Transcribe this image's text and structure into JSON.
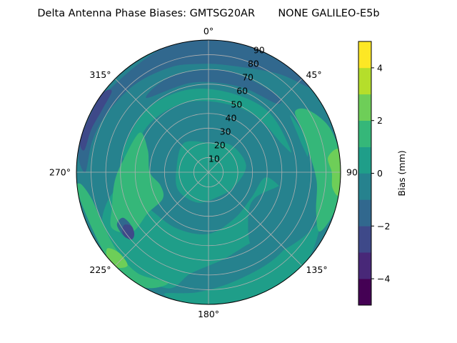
{
  "chart_data": {
    "type": "heatmap",
    "projection": "polar",
    "title": "Delta Antenna Phase Biases: GMTSG20AR       NONE GALILEO-E5b",
    "theta_zero_location": "N",
    "theta_direction": "clockwise",
    "angle_ticks": [
      {
        "deg": 0,
        "label": "0°"
      },
      {
        "deg": 45,
        "label": "45°"
      },
      {
        "deg": 90,
        "label": "90°"
      },
      {
        "deg": 135,
        "label": "135°"
      },
      {
        "deg": 180,
        "label": "180°"
      },
      {
        "deg": 225,
        "label": "225°"
      },
      {
        "deg": 270,
        "label": "270°"
      },
      {
        "deg": 315,
        "label": "315°"
      }
    ],
    "radial_ticks": [
      {
        "value": 10,
        "label": "10"
      },
      {
        "value": 20,
        "label": "20"
      },
      {
        "value": 30,
        "label": "30"
      },
      {
        "value": 40,
        "label": "40"
      },
      {
        "value": 50,
        "label": "50"
      },
      {
        "value": 60,
        "label": "60"
      },
      {
        "value": 70,
        "label": "70"
      },
      {
        "value": 80,
        "label": "80"
      },
      {
        "value": 90,
        "label": "90"
      }
    ],
    "rlim": [
      0,
      90
    ],
    "grid": true,
    "colorbar": {
      "label": "Bias (mm)",
      "range": [
        -5,
        5
      ],
      "levels": [
        -5,
        -4,
        -3,
        -2,
        -1,
        0,
        1,
        2,
        3,
        4,
        5
      ],
      "ticks": [
        {
          "value": -4,
          "label": "−4"
        },
        {
          "value": -2,
          "label": "−2"
        },
        {
          "value": 0,
          "label": "0"
        },
        {
          "value": 2,
          "label": "2"
        },
        {
          "value": 4,
          "label": "4"
        }
      ],
      "colors": [
        "#440154",
        "#482878",
        "#3e4989",
        "#31688e",
        "#26828e",
        "#1f9e89",
        "#35b779",
        "#6ece58",
        "#b5de2b",
        "#fde725"
      ]
    },
    "background_color": "#26828e",
    "regions": [
      {
        "level": "0 to 1",
        "color": "#1f9e89",
        "points": [
          [
            0,
            20
          ],
          [
            40,
            24
          ],
          [
            80,
            26
          ],
          [
            120,
            20
          ],
          [
            160,
            18
          ],
          [
            200,
            22
          ],
          [
            240,
            24
          ],
          [
            280,
            22
          ],
          [
            320,
            26
          ],
          [
            360,
            20
          ]
        ]
      },
      {
        "level": "0 to 1",
        "color": "#1f9e89",
        "points": [
          [
            280,
            55
          ],
          [
            310,
            52
          ],
          [
            340,
            50
          ],
          [
            10,
            48
          ],
          [
            40,
            50
          ],
          [
            70,
            54
          ],
          [
            75,
            58
          ],
          [
            45,
            58
          ],
          [
            15,
            56
          ],
          [
            345,
            58
          ],
          [
            315,
            60
          ],
          [
            285,
            60
          ]
        ]
      },
      {
        "level": "0 to 1",
        "color": "#1f9e89",
        "points": [
          [
            95,
            40
          ],
          [
            120,
            34
          ],
          [
            150,
            36
          ],
          [
            180,
            42
          ],
          [
            210,
            44
          ],
          [
            240,
            48
          ],
          [
            260,
            62
          ],
          [
            245,
            80
          ],
          [
            225,
            86
          ],
          [
            200,
            84
          ],
          [
            190,
            70
          ],
          [
            170,
            60
          ],
          [
            150,
            56
          ],
          [
            130,
            62
          ],
          [
            110,
            58
          ]
        ]
      },
      {
        "level": "0 to 1",
        "color": "#1f9e89",
        "points": [
          [
            55,
            68
          ],
          [
            75,
            72
          ],
          [
            95,
            80
          ],
          [
            120,
            86
          ],
          [
            135,
            90
          ],
          [
            155,
            90
          ],
          [
            175,
            90
          ],
          [
            190,
            90
          ],
          [
            200,
            88
          ],
          [
            185,
            82
          ],
          [
            165,
            76
          ],
          [
            140,
            74
          ],
          [
            115,
            72
          ],
          [
            90,
            70
          ],
          [
            70,
            66
          ]
        ]
      },
      {
        "level": "-1 to 0",
        "color": "#26828e",
        "points": [
          [
            60,
            78
          ],
          [
            75,
            72
          ],
          [
            90,
            62
          ],
          [
            100,
            50
          ],
          [
            120,
            36
          ],
          [
            140,
            42
          ],
          [
            150,
            60
          ],
          [
            140,
            72
          ],
          [
            115,
            82
          ],
          [
            90,
            90
          ],
          [
            70,
            90
          ]
        ]
      },
      {
        "level": "1 to 2",
        "color": "#35b779",
        "points": [
          [
            240,
            36
          ],
          [
            255,
            34
          ],
          [
            270,
            40
          ],
          [
            290,
            44
          ],
          [
            300,
            54
          ],
          [
            280,
            58
          ],
          [
            265,
            64
          ],
          [
            250,
            70
          ],
          [
            240,
            76
          ],
          [
            232,
            66
          ],
          [
            236,
            50
          ]
        ]
      },
      {
        "level": "1 to 2",
        "color": "#35b779",
        "points": [
          [
            55,
            72
          ],
          [
            65,
            70
          ],
          [
            80,
            70
          ],
          [
            95,
            74
          ],
          [
            110,
            78
          ],
          [
            118,
            86
          ],
          [
            105,
            90
          ],
          [
            85,
            90
          ],
          [
            70,
            88
          ],
          [
            58,
            80
          ]
        ]
      },
      {
        "level": "1 to 2",
        "color": "#35b779",
        "points": [
          [
            200,
            80
          ],
          [
            215,
            84
          ],
          [
            230,
            82
          ],
          [
            245,
            80
          ],
          [
            258,
            82
          ],
          [
            265,
            88
          ],
          [
            260,
            90
          ],
          [
            230,
            90
          ],
          [
            210,
            90
          ]
        ]
      },
      {
        "level": "2 to 3",
        "color": "#6ece58",
        "points": [
          [
            83,
            82
          ],
          [
            90,
            84
          ],
          [
            97,
            85
          ],
          [
            100,
            90
          ],
          [
            90,
            90
          ],
          [
            80,
            90
          ]
        ]
      },
      {
        "level": "2 to 3",
        "color": "#6ece58",
        "points": [
          [
            221,
            84
          ],
          [
            228,
            82
          ],
          [
            233,
            86
          ],
          [
            230,
            90
          ],
          [
            224,
            90
          ]
        ]
      },
      {
        "level": "-2 to -1",
        "color": "#31688e",
        "points": [
          [
            270,
            84
          ],
          [
            285,
            82
          ],
          [
            300,
            80
          ],
          [
            320,
            78
          ],
          [
            340,
            76
          ],
          [
            355,
            74
          ],
          [
            10,
            74
          ],
          [
            35,
            82
          ],
          [
            50,
            90
          ],
          [
            35,
            90
          ],
          [
            10,
            90
          ],
          [
            340,
            90
          ],
          [
            300,
            90
          ],
          [
            280,
            90
          ]
        ]
      },
      {
        "level": "-2 to -1",
        "color": "#31688e",
        "points": [
          [
            320,
            66
          ],
          [
            350,
            62
          ],
          [
            20,
            62
          ],
          [
            45,
            66
          ],
          [
            40,
            70
          ],
          [
            10,
            70
          ],
          [
            340,
            70
          ]
        ]
      },
      {
        "level": "-2 to -1",
        "color": "#31688e",
        "points": [
          [
            235,
            64
          ],
          [
            242,
            66
          ],
          [
            240,
            72
          ],
          [
            232,
            72
          ],
          [
            230,
            68
          ]
        ]
      },
      {
        "level": "-3 to -2",
        "color": "#3e4989",
        "points": [
          [
            280,
            86
          ],
          [
            290,
            85
          ],
          [
            300,
            84
          ],
          [
            310,
            86
          ],
          [
            305,
            90
          ],
          [
            285,
            90
          ]
        ]
      },
      {
        "level": "-3 to -2",
        "color": "#3e4989",
        "points": [
          [
            230,
            66
          ],
          [
            235,
            64
          ],
          [
            238,
            68
          ],
          [
            234,
            72
          ],
          [
            229,
            70
          ]
        ]
      }
    ]
  }
}
